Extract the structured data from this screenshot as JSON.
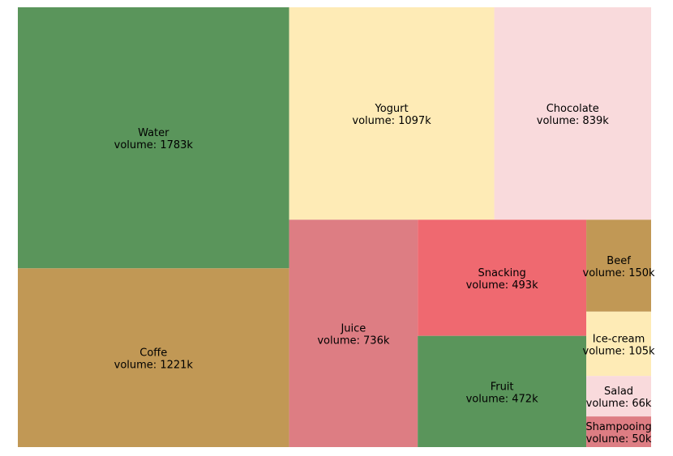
{
  "chart_data": {
    "type": "treemap",
    "items": [
      {
        "name": "Water",
        "label": "volume: 1783k",
        "value": 1783,
        "color": "#5a955b"
      },
      {
        "name": "Coffe",
        "label": "volume: 1221k",
        "value": 1221,
        "color": "#c19855"
      },
      {
        "name": "Yogurt",
        "label": "volume: 1097k",
        "value": 1097,
        "color": "#feebb6"
      },
      {
        "name": "Chocolate",
        "label": "volume: 839k",
        "value": 839,
        "color": "#f9dadc"
      },
      {
        "name": "Juice",
        "label": "volume: 736k",
        "value": 736,
        "color": "#dd7d83"
      },
      {
        "name": "Snacking",
        "label": "volume: 493k",
        "value": 493,
        "color": "#ef6970"
      },
      {
        "name": "Fruit",
        "label": "volume: 472k",
        "value": 472,
        "color": "#5a955b"
      },
      {
        "name": "Beef",
        "label": "volume: 150k",
        "value": 150,
        "color": "#c19855"
      },
      {
        "name": "Ice-cream",
        "label": "volume: 105k",
        "value": 105,
        "color": "#feebb6"
      },
      {
        "name": "Salad",
        "label": "volume: 66k",
        "value": 66,
        "color": "#f9dadc"
      },
      {
        "name": "Shampooing",
        "label": "volume: 50k",
        "value": 50,
        "color": "#dd7d83"
      }
    ]
  }
}
